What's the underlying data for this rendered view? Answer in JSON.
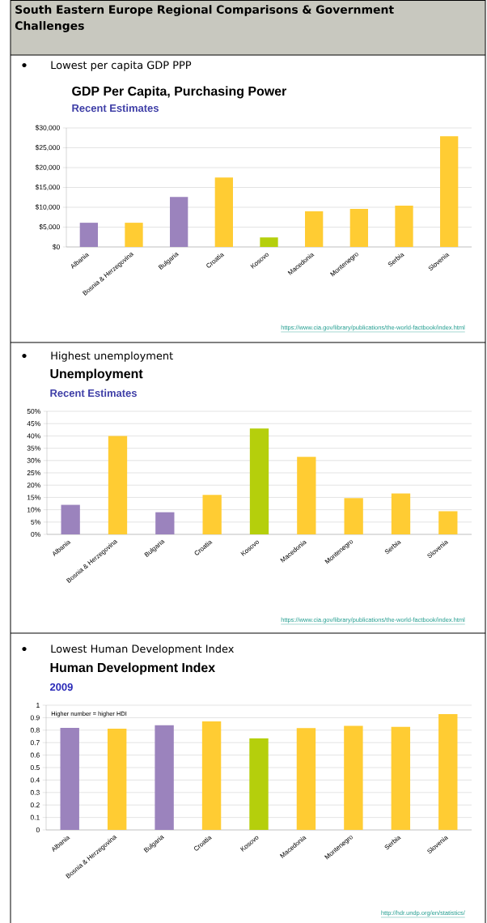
{
  "chart_data": [
    {
      "type": "bar",
      "title": "GDP Per Capita, Purchasing Power",
      "subtitle": "Recent Estimates",
      "categories": [
        "Albania",
        "Bosnia & Herzegovina",
        "Bulgaria",
        "Croatia",
        "Kosovo",
        "Macedonia",
        "Montenegro",
        "Serbia",
        "Slovenia"
      ],
      "values": [
        6100,
        6100,
        12600,
        17500,
        2400,
        9000,
        9600,
        10400,
        27900
      ],
      "colors": [
        "#9b83bd",
        "#ffcc33",
        "#9b83bd",
        "#ffcc33",
        "#b5cf0c",
        "#ffcc33",
        "#ffcc33",
        "#ffcc33",
        "#ffcc33"
      ],
      "ylim": [
        0,
        30000
      ],
      "yticks": [
        {
          "value": 0,
          "label": "$0"
        },
        {
          "value": 5000,
          "label": "$5,000"
        },
        {
          "value": 10000,
          "label": "$10,000"
        },
        {
          "value": 15000,
          "label": "$15,000"
        },
        {
          "value": 20000,
          "label": "$20,000"
        },
        {
          "value": 25000,
          "label": "$25,000"
        },
        {
          "value": 30000,
          "label": "$30,000"
        }
      ],
      "grid": "y",
      "annotations": [
        "South Eastern Europe Regional Comparisons & Government Challenges",
        "Lowest per capita GDP PPP",
        "https://www.cia.gov/library/publications/the-world-factbook/index.html"
      ]
    },
    {
      "type": "bar",
      "title": "Unemployment",
      "subtitle": "Recent Estimates",
      "categories": [
        "Albania",
        "Bosnia & Herzegovina",
        "Bulgaria",
        "Croatia",
        "Kosovo",
        "Macedonia",
        "Montenegro",
        "Serbia",
        "Slovenia"
      ],
      "values": [
        12,
        40,
        9,
        16,
        43,
        31.5,
        14.7,
        16.6,
        9.4
      ],
      "colors": [
        "#9b83bd",
        "#ffcc33",
        "#9b83bd",
        "#ffcc33",
        "#b5cf0c",
        "#ffcc33",
        "#ffcc33",
        "#ffcc33",
        "#ffcc33"
      ],
      "ylim": [
        0,
        50
      ],
      "yticks": [
        {
          "value": 0,
          "label": "0%"
        },
        {
          "value": 5,
          "label": "5%"
        },
        {
          "value": 10,
          "label": "10%"
        },
        {
          "value": 15,
          "label": "15%"
        },
        {
          "value": 20,
          "label": "20%"
        },
        {
          "value": 25,
          "label": "25%"
        },
        {
          "value": 30,
          "label": "30%"
        },
        {
          "value": 35,
          "label": "35%"
        },
        {
          "value": 40,
          "label": "40%"
        },
        {
          "value": 45,
          "label": "45%"
        },
        {
          "value": 50,
          "label": "50%"
        }
      ],
      "grid": "y",
      "annotations": [
        "Highest unemployment",
        "https://www.cia.gov/library/publications/the-world-factbook/index.html"
      ]
    },
    {
      "type": "bar",
      "title": "Human Development Index",
      "subtitle": "2009",
      "categories": [
        "Albania",
        "Bosnia & Herzegovina",
        "Bulgaria",
        "Croatia",
        "Kosovo",
        "Macedonia",
        "Montenegro",
        "Serbia",
        "Slovenia"
      ],
      "values": [
        0.818,
        0.812,
        0.84,
        0.871,
        0.734,
        0.817,
        0.834,
        0.826,
        0.929
      ],
      "colors": [
        "#9b83bd",
        "#ffcc33",
        "#9b83bd",
        "#ffcc33",
        "#b5cf0c",
        "#ffcc33",
        "#ffcc33",
        "#ffcc33",
        "#ffcc33"
      ],
      "ylim": [
        0,
        1
      ],
      "yticks": [
        0,
        0.1,
        0.2,
        0.3,
        0.4,
        0.5,
        0.6,
        0.7,
        0.8,
        0.9,
        1
      ],
      "grid": "y",
      "annotations": [
        "Lowest Human Development Index",
        "Higher number = higher HDI",
        "http://hdr.undp.org/en/statistics/"
      ]
    }
  ]
}
